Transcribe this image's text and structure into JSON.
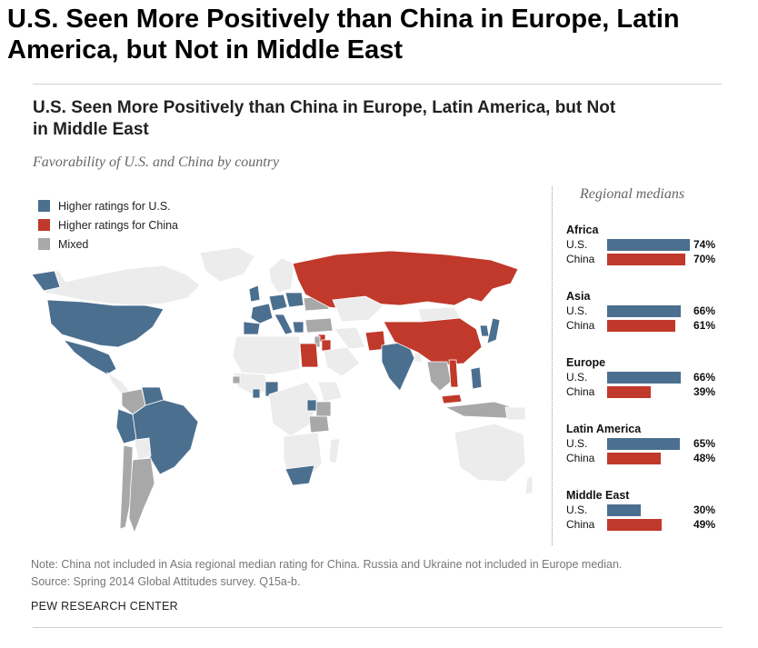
{
  "header": {
    "title": "U.S. Seen More Positively than China in Europe, Latin America, but Not in Middle East"
  },
  "chart_data": [
    {
      "type": "map",
      "title": "U.S. Seen More Positively than China in Europe, Latin America, but Not in Middle East",
      "subtitle": "Favorability of U.S. and China by country",
      "legend": [
        {
          "label": "Higher ratings for U.S.",
          "color": "#4b6f8f"
        },
        {
          "label": "Higher ratings for China",
          "color": "#c0392b"
        },
        {
          "label": "Mixed",
          "color": "#a8a8a8"
        }
      ],
      "legend_placement": "top-left"
    },
    {
      "type": "bar",
      "title": "Regional medians",
      "series_labels": [
        "U.S.",
        "China"
      ],
      "series_colors": [
        "#4b6f8f",
        "#c0392b"
      ],
      "xlim": [
        0,
        80
      ],
      "groups": [
        {
          "name": "Africa",
          "us": 74,
          "china": 70,
          "us_label": "74%",
          "china_label": "70%"
        },
        {
          "name": "Asia",
          "us": 66,
          "china": 61,
          "us_label": "66%",
          "china_label": "61%"
        },
        {
          "name": "Europe",
          "us": 66,
          "china": 39,
          "us_label": "66%",
          "china_label": "39%"
        },
        {
          "name": "Latin America",
          "us": 65,
          "china": 48,
          "us_label": "65%",
          "china_label": "48%"
        },
        {
          "name": "Middle East",
          "us": 30,
          "china": 49,
          "us_label": "30%",
          "china_label": "49%"
        }
      ]
    }
  ],
  "footer": {
    "note": "Note: China not included in Asia regional median rating for China. Russia and Ukraine not included in Europe median.",
    "source": "Source: Spring 2014 Global Attitudes survey. Q15a-b.",
    "org": "PEW RESEARCH CENTER"
  }
}
